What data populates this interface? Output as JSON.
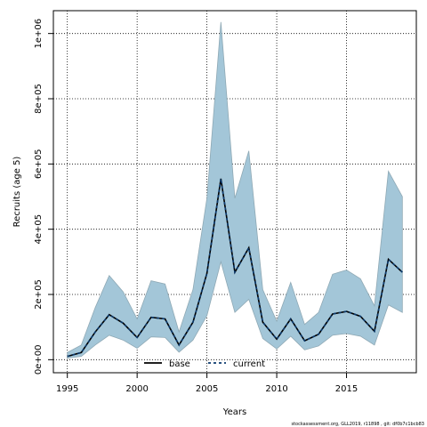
{
  "chart_data": {
    "type": "area",
    "xlabel": "Years",
    "ylabel": "Recruits (age 5)",
    "xlim": [
      1994,
      2020
    ],
    "ylim": [
      -40000,
      1070000
    ],
    "x_ticks": [
      1995,
      2000,
      2005,
      2010,
      2015
    ],
    "y_ticks": [
      {
        "value": 0,
        "label": "0e+00"
      },
      {
        "value": 200000,
        "label": "2e+05"
      },
      {
        "value": 400000,
        "label": "4e+05"
      },
      {
        "value": 600000,
        "label": "6e+05"
      },
      {
        "value": 800000,
        "label": "8e+05"
      },
      {
        "value": 1000000,
        "label": "1e+06"
      }
    ],
    "grid": true,
    "legend_placement": "bottom-center",
    "x": [
      1995,
      1996,
      1997,
      1998,
      1999,
      2000,
      2001,
      2002,
      2003,
      2004,
      2005,
      2006,
      2007,
      2008,
      2009,
      2010,
      2011,
      2012,
      2013,
      2014,
      2015,
      2016,
      2017,
      2018,
      2019
    ],
    "band": {
      "upper": [
        22000,
        45000,
        160000,
        258000,
        208000,
        125000,
        242000,
        232000,
        85000,
        215000,
        495000,
        1035000,
        495000,
        640000,
        215000,
        118000,
        237000,
        108000,
        145000,
        262000,
        275000,
        248000,
        165000,
        578000,
        500000
      ],
      "lower": [
        5000,
        10000,
        45000,
        75000,
        60000,
        35000,
        70000,
        68000,
        23000,
        60000,
        135000,
        300000,
        145000,
        185000,
        65000,
        33000,
        72000,
        30000,
        42000,
        75000,
        80000,
        72000,
        45000,
        168000,
        145000
      ]
    },
    "series": [
      {
        "name": "base",
        "values": [
          10000,
          22000,
          85000,
          138000,
          112000,
          68000,
          130000,
          125000,
          45000,
          115000,
          265000,
          555000,
          268000,
          343000,
          115000,
          63000,
          125000,
          58000,
          78000,
          140000,
          148000,
          133000,
          87000,
          308000,
          268000
        ]
      },
      {
        "name": "current",
        "values": [
          10000,
          22000,
          85000,
          138000,
          112000,
          68000,
          130000,
          125000,
          45000,
          115000,
          265000,
          555000,
          268000,
          343000,
          115000,
          63000,
          125000,
          58000,
          78000,
          140000,
          148000,
          133000,
          87000,
          308000,
          268000
        ]
      }
    ],
    "colors": {
      "band": "#a3c6d8",
      "band_edge": "#8fa9b5",
      "base": "#000000",
      "current": "#0b3a6e"
    }
  },
  "footer": "stockassessment.org, GLL2019, r11898 , git: df0b7c1bcb83"
}
